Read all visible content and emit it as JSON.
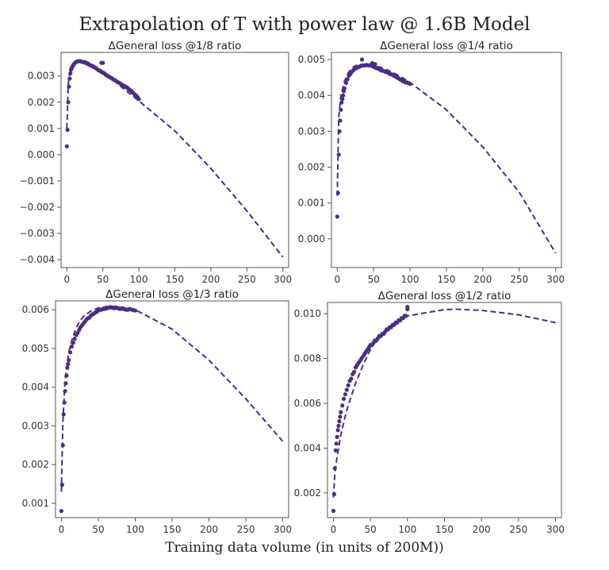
{
  "title": "Extrapolation of T with power law @ 1.6B Model",
  "xlabel": "Training  data volume (in units of 200M))",
  "colors": {
    "series": "#4b2d83"
  },
  "chart_data": [
    {
      "type": "scatter",
      "title": "ΔGeneral loss @1/8 ratio",
      "ylim": [
        -0.0043,
        0.0039
      ],
      "xlim": [
        -8,
        308
      ],
      "xticks": [
        0,
        50,
        100,
        150,
        200,
        250,
        300
      ],
      "yticks": [
        -0.004,
        -0.003,
        -0.002,
        -0.001,
        0.0,
        0.001,
        0.002,
        0.003
      ],
      "ytick_labels": [
        "−0.004",
        "−0.003",
        "−0.002",
        "−0.001",
        "0.000",
        "0.001",
        "0.002",
        "0.003"
      ],
      "fit_line": {
        "x": [
          0,
          2,
          5,
          10,
          15,
          20,
          25,
          30,
          40,
          50,
          60,
          70,
          80,
          90,
          100,
          150,
          200,
          250,
          300
        ],
        "y": [
          0.001,
          0.0027,
          0.0033,
          0.00355,
          0.0036,
          0.0036,
          0.00358,
          0.00352,
          0.00336,
          0.00318,
          0.00296,
          0.00272,
          0.00249,
          0.00227,
          0.00205,
          0.00091,
          -0.00052,
          -0.00214,
          -0.0039
        ]
      },
      "scatter": {
        "x": [
          0,
          1,
          2,
          3,
          4,
          5,
          6,
          7,
          8,
          9,
          10,
          12,
          14,
          16,
          18,
          20,
          22,
          24,
          26,
          28,
          30,
          32,
          34,
          36,
          38,
          40,
          42,
          44,
          46,
          48,
          50,
          52,
          54,
          56,
          58,
          60,
          62,
          64,
          66,
          68,
          70,
          72,
          74,
          76,
          78,
          80,
          82,
          84,
          86,
          88,
          90,
          92,
          94,
          96,
          98,
          100,
          48,
          50
        ],
        "y": [
          0.00032,
          0.00095,
          0.002,
          0.0026,
          0.0029,
          0.0031,
          0.00325,
          0.00332,
          0.00337,
          0.00342,
          0.00345,
          0.00352,
          0.00355,
          0.00356,
          0.00357,
          0.00355,
          0.00354,
          0.00352,
          0.0035,
          0.00348,
          0.00345,
          0.00342,
          0.0034,
          0.00336,
          0.00334,
          0.0033,
          0.00327,
          0.00322,
          0.0032,
          0.00316,
          0.00313,
          0.0031,
          0.00305,
          0.00302,
          0.00298,
          0.00295,
          0.00292,
          0.00288,
          0.00285,
          0.00282,
          0.00278,
          0.00275,
          0.00272,
          0.00268,
          0.00264,
          0.00262,
          0.00258,
          0.00255,
          0.0025,
          0.00246,
          0.00242,
          0.00236,
          0.0023,
          0.00226,
          0.0022,
          0.00212,
          0.0035,
          0.0035
        ]
      }
    },
    {
      "type": "scatter",
      "title": "ΔGeneral loss @1/4 ratio",
      "ylim": [
        -0.0008,
        0.0052
      ],
      "xlim": [
        -8,
        308
      ],
      "xticks": [
        0,
        50,
        100,
        150,
        200,
        250,
        300
      ],
      "yticks": [
        0.0,
        0.001,
        0.002,
        0.003,
        0.004,
        0.005
      ],
      "ytick_labels": [
        "0.000",
        "0.001",
        "0.002",
        "0.003",
        "0.004",
        "0.005"
      ],
      "fit_line": {
        "x": [
          0,
          2,
          5,
          10,
          15,
          20,
          25,
          30,
          40,
          50,
          60,
          70,
          80,
          90,
          100,
          150,
          200,
          250,
          300
        ],
        "y": [
          0.0012,
          0.0034,
          0.004,
          0.0044,
          0.00463,
          0.00476,
          0.00483,
          0.00486,
          0.00487,
          0.00484,
          0.00478,
          0.0047,
          0.0046,
          0.00449,
          0.00436,
          0.0036,
          0.00256,
          0.0013,
          -0.0004
        ]
      },
      "scatter": {
        "x": [
          0,
          1,
          2,
          3,
          4,
          5,
          6,
          7,
          8,
          9,
          10,
          12,
          14,
          16,
          18,
          20,
          22,
          24,
          26,
          28,
          30,
          32,
          34,
          36,
          38,
          40,
          42,
          44,
          46,
          48,
          50,
          52,
          54,
          56,
          58,
          60,
          62,
          64,
          66,
          68,
          70,
          72,
          74,
          76,
          78,
          80,
          82,
          84,
          86,
          88,
          90,
          92,
          94,
          96,
          98,
          100,
          34,
          48,
          52
        ],
        "y": [
          0.00062,
          0.00128,
          0.00235,
          0.003,
          0.0033,
          0.0036,
          0.0038,
          0.0039,
          0.004,
          0.00412,
          0.0042,
          0.00435,
          0.00445,
          0.00455,
          0.0046,
          0.00466,
          0.0047,
          0.00474,
          0.00476,
          0.00478,
          0.0048,
          0.00482,
          0.00483,
          0.00484,
          0.00484,
          0.00485,
          0.00484,
          0.00484,
          0.00483,
          0.00482,
          0.0048,
          0.00478,
          0.00476,
          0.00475,
          0.00473,
          0.0047,
          0.00469,
          0.00468,
          0.00466,
          0.00465,
          0.00463,
          0.0046,
          0.00459,
          0.00458,
          0.00455,
          0.00453,
          0.0045,
          0.00448,
          0.00445,
          0.00443,
          0.0044,
          0.00438,
          0.00436,
          0.00436,
          0.00434,
          0.00432,
          0.005,
          0.0049,
          0.00487
        ]
      }
    },
    {
      "type": "scatter",
      "title": "ΔGeneral loss @1/3 ratio",
      "ylim": [
        0.00063,
        0.00623
      ],
      "xlim": [
        -8,
        308
      ],
      "xticks": [
        0,
        50,
        100,
        150,
        200,
        250,
        300
      ],
      "yticks": [
        0.001,
        0.002,
        0.003,
        0.004,
        0.005,
        0.006
      ],
      "ytick_labels": [
        "0.001",
        "0.002",
        "0.003",
        "0.004",
        "0.005",
        "0.006"
      ],
      "fit_line": {
        "x": [
          0,
          2,
          5,
          10,
          15,
          20,
          25,
          30,
          40,
          50,
          60,
          70,
          80,
          90,
          100,
          150,
          200,
          250,
          300
        ],
        "y": [
          0.0013,
          0.0031,
          0.0042,
          0.0049,
          0.00527,
          0.00553,
          0.00571,
          0.00583,
          0.00597,
          0.00605,
          0.00608,
          0.00609,
          0.00607,
          0.00604,
          0.006,
          0.0055,
          0.0047,
          0.0037,
          0.0026
        ]
      },
      "scatter": {
        "x": [
          0,
          1,
          2,
          3,
          4,
          5,
          6,
          7,
          8,
          9,
          10,
          12,
          14,
          16,
          18,
          20,
          22,
          24,
          26,
          28,
          30,
          32,
          34,
          36,
          38,
          40,
          42,
          44,
          46,
          48,
          50,
          52,
          54,
          56,
          58,
          60,
          62,
          64,
          66,
          68,
          70,
          72,
          74,
          76,
          78,
          80,
          82,
          84,
          86,
          88,
          90,
          92,
          94,
          96,
          98,
          100
        ],
        "y": [
          0.0008,
          0.00148,
          0.0025,
          0.0033,
          0.0036,
          0.0039,
          0.0041,
          0.0043,
          0.0045,
          0.0046,
          0.0047,
          0.0049,
          0.00505,
          0.00515,
          0.00525,
          0.00535,
          0.0054,
          0.00548,
          0.00555,
          0.0056,
          0.00565,
          0.0057,
          0.00575,
          0.00578,
          0.0058,
          0.00585,
          0.00588,
          0.0059,
          0.00593,
          0.00595,
          0.00598,
          0.006,
          0.006,
          0.00602,
          0.00602,
          0.00603,
          0.00605,
          0.00605,
          0.00607,
          0.00606,
          0.00605,
          0.00604,
          0.00606,
          0.00605,
          0.00603,
          0.00602,
          0.00604,
          0.00603,
          0.00601,
          0.006,
          0.006,
          0.00602,
          0.00601,
          0.006,
          0.00599,
          0.00598
        ]
      }
    },
    {
      "type": "scatter",
      "title": "ΔGeneral loss @1/2 ratio",
      "ylim": [
        0.0009,
        0.0105
      ],
      "xlim": [
        -8,
        308
      ],
      "xticks": [
        0,
        50,
        100,
        150,
        200,
        250,
        300
      ],
      "yticks": [
        0.002,
        0.004,
        0.006,
        0.008,
        0.01
      ],
      "ytick_labels": [
        "0.002",
        "0.004",
        "0.006",
        "0.008",
        "0.010"
      ],
      "fit_line": {
        "x": [
          0,
          2,
          5,
          10,
          15,
          20,
          25,
          30,
          40,
          50,
          60,
          70,
          80,
          90,
          100,
          150,
          165,
          200,
          250,
          300
        ],
        "y": [
          0.0018,
          0.0029,
          0.0036,
          0.0046,
          0.0053,
          0.0059,
          0.0064,
          0.0069,
          0.0077,
          0.0084,
          0.0089,
          0.00925,
          0.0095,
          0.0097,
          0.0099,
          0.01018,
          0.0102,
          0.01015,
          0.00995,
          0.0096
        ]
      },
      "scatter": {
        "x": [
          0,
          1,
          2,
          3,
          4,
          5,
          6,
          7,
          8,
          9,
          10,
          12,
          14,
          16,
          18,
          20,
          22,
          24,
          26,
          28,
          30,
          32,
          34,
          36,
          38,
          40,
          42,
          44,
          46,
          48,
          50,
          52,
          54,
          56,
          58,
          60,
          62,
          64,
          66,
          68,
          70,
          72,
          74,
          76,
          78,
          80,
          82,
          84,
          86,
          88,
          90,
          92,
          94,
          96,
          98,
          100,
          100
        ],
        "y": [
          0.0012,
          0.00195,
          0.0031,
          0.0039,
          0.0042,
          0.0045,
          0.0048,
          0.005,
          0.0052,
          0.0054,
          0.0056,
          0.0059,
          0.0062,
          0.0064,
          0.0066,
          0.0068,
          0.007,
          0.0071,
          0.0073,
          0.0074,
          0.0076,
          0.0077,
          0.0078,
          0.0079,
          0.008,
          0.0081,
          0.0082,
          0.0083,
          0.0084,
          0.0085,
          0.0086,
          0.0086,
          0.0087,
          0.0088,
          0.0088,
          0.0089,
          0.009,
          0.009,
          0.0091,
          0.0091,
          0.0092,
          0.0093,
          0.0093,
          0.0094,
          0.0094,
          0.0095,
          0.0095,
          0.0096,
          0.0096,
          0.0097,
          0.0097,
          0.0098,
          0.0098,
          0.0099,
          0.0099,
          0.0102,
          0.0103
        ]
      }
    }
  ]
}
